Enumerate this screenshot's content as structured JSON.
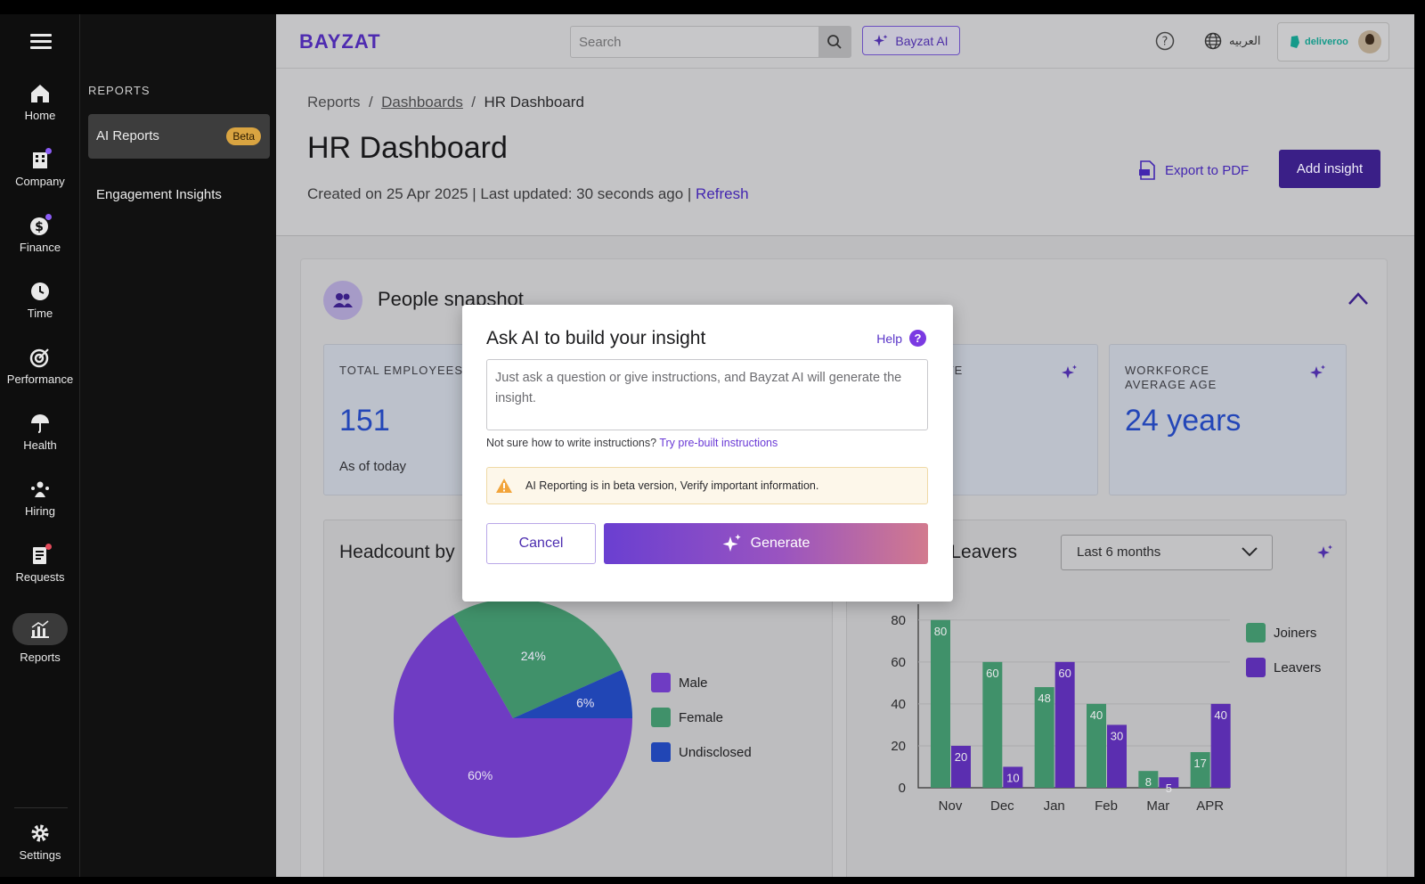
{
  "nav": {
    "items": [
      {
        "label": "Home",
        "icon": "home-icon"
      },
      {
        "label": "Company",
        "icon": "building-icon"
      },
      {
        "label": "Finance",
        "icon": "dollar-icon"
      },
      {
        "label": "Time",
        "icon": "clock-icon"
      },
      {
        "label": "Performance",
        "icon": "target-icon"
      },
      {
        "label": "Health",
        "icon": "umbrella-icon"
      },
      {
        "label": "Hiring",
        "icon": "hiring-icon"
      },
      {
        "label": "Requests",
        "icon": "requests-icon"
      },
      {
        "label": "Reports",
        "icon": "chart-icon"
      }
    ],
    "settings": "Settings"
  },
  "subnav": {
    "header": "REPORTS",
    "items": [
      {
        "label": "AI Reports",
        "badge": "Beta"
      },
      {
        "label": "Engagement Insights"
      }
    ]
  },
  "topbar": {
    "logo": "BAYZAT",
    "search_placeholder": "Search",
    "ai_button": "Bayzat AI",
    "language": "العربيه",
    "company": "deliveroo"
  },
  "header": {
    "breadcrumb": [
      "Reports",
      "Dashboards",
      "HR Dashboard"
    ],
    "title": "HR Dashboard",
    "meta": "Created on 25 Apr 2025 | Last updated: 30 seconds ago | ",
    "refresh": "Refresh",
    "export": "Export to PDF",
    "add_insight": "Add insight"
  },
  "snapshot": {
    "title": "People snapshot",
    "stats": [
      {
        "label": "TOTAL EMPLOYEES",
        "value": "151",
        "sub": "As of today"
      },
      {
        "label": "ATE",
        "value": "",
        "sub": ""
      },
      {
        "label": "WORKFORCE\nAVERAGE AGE",
        "value": "24 years",
        "sub": ""
      }
    ]
  },
  "panels": {
    "headcount_title": "Headcount by",
    "joiners_title": "s Leavers",
    "period": "Last 6 months"
  },
  "modal": {
    "title": "Ask AI to build your insight",
    "help": "Help",
    "placeholder": "Just ask a question or give instructions, and Bayzat AI will generate the insight.",
    "hint_prefix": "Not sure how to write instructions? ",
    "hint_link": "Try pre-built instructions",
    "warning": "AI Reporting is in beta version, Verify important information.",
    "cancel": "Cancel",
    "generate": "Generate"
  },
  "chart_data": [
    {
      "type": "pie",
      "categories": [
        "Male",
        "Female",
        "Undisclosed"
      ],
      "values": [
        60,
        24,
        6
      ],
      "labels": [
        "60%",
        "24%",
        "6%"
      ],
      "colors": [
        "#6f3cc3",
        "#40916a",
        "#2146b5"
      ]
    },
    {
      "type": "bar",
      "categories": [
        "Nov",
        "Dec",
        "Jan",
        "Feb",
        "Mar",
        "APR"
      ],
      "series": [
        {
          "name": "Joiners",
          "values": [
            80,
            60,
            48,
            40,
            8,
            17
          ],
          "color": "#40916a"
        },
        {
          "name": "Leavers",
          "values": [
            20,
            10,
            60,
            30,
            5,
            40
          ],
          "color": "#5b2eb0"
        }
      ],
      "yticks": [
        0,
        20,
        40,
        60,
        80
      ],
      "ylim": [
        0,
        85
      ]
    }
  ]
}
